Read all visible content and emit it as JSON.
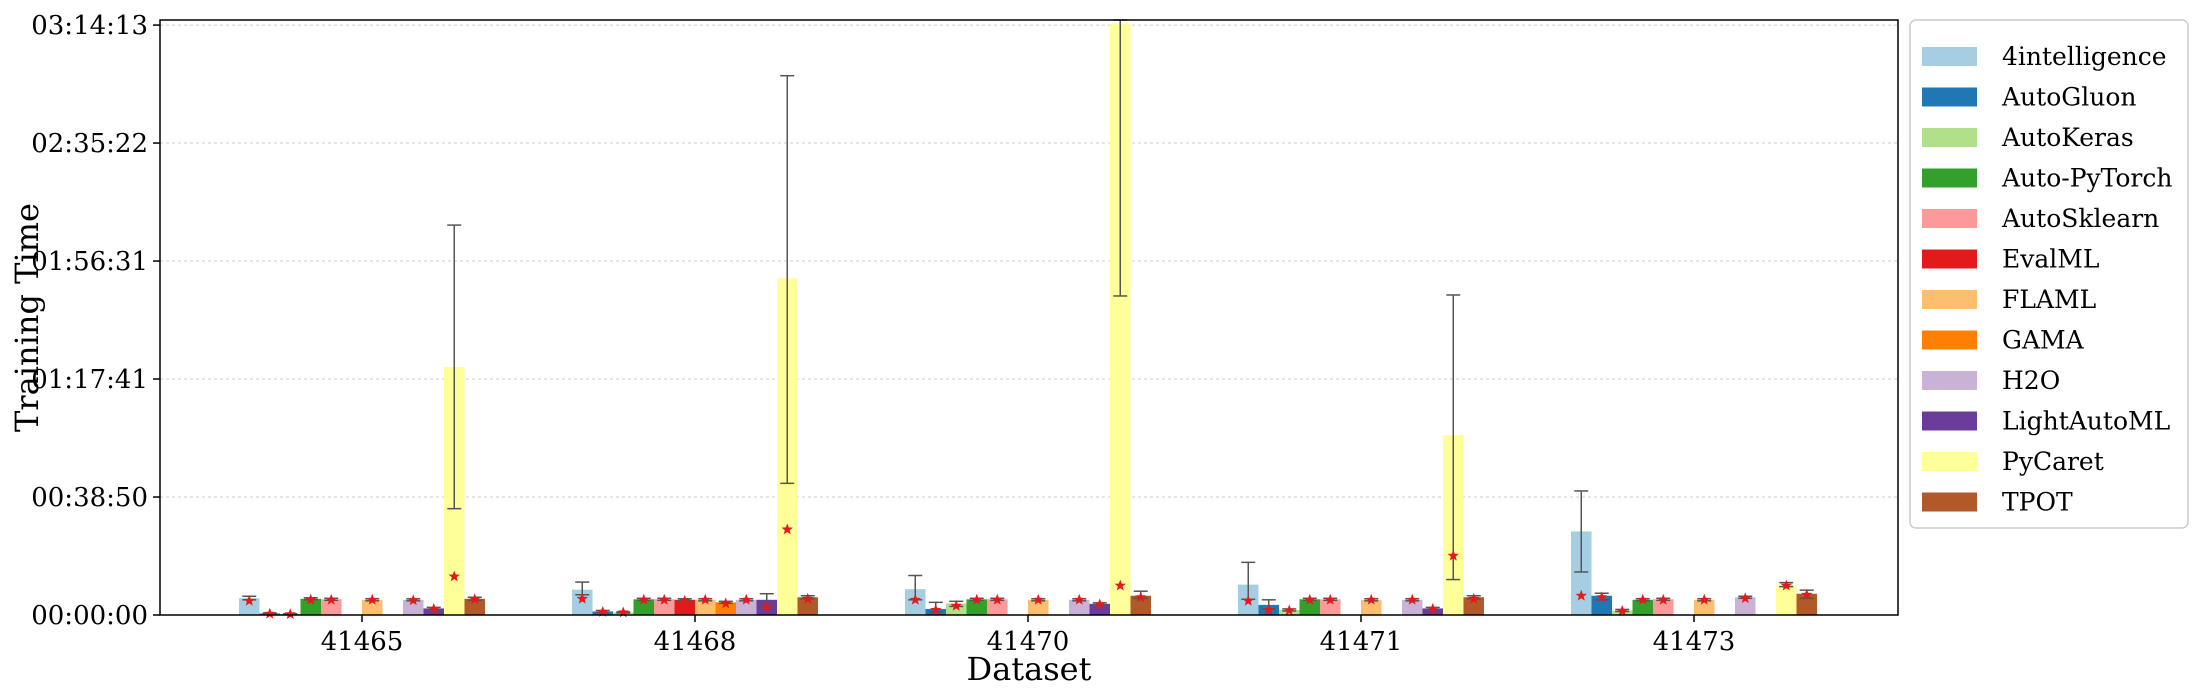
{
  "chart_data": {
    "type": "bar",
    "xlabel": "Dataset",
    "ylabel": "Training Time",
    "categories": [
      "41465",
      "41468",
      "41470",
      "41471",
      "41473"
    ],
    "y_unit": "seconds",
    "ylim": [
      0,
      11750
    ],
    "yticks": [
      0,
      2330,
      4660,
      6990,
      9320,
      11650
    ],
    "ytick_labels": [
      "00:00:00",
      "00:38:50",
      "01:17:41",
      "01:56:31",
      "02:35:22",
      "03:14:13"
    ],
    "grid": "horizontal dashed",
    "legend_position": "right",
    "mean_marker": "red star",
    "series": [
      {
        "name": "4intelligence",
        "color": "#a6cee3",
        "values": [
          330,
          500,
          510,
          600,
          1650
        ],
        "err": [
          [
            300,
            370
          ],
          [
            400,
            650
          ],
          [
            300,
            780
          ],
          [
            310,
            1040
          ],
          [
            850,
            2450
          ]
        ],
        "marker": [
          280,
          320,
          300,
          280,
          380
        ]
      },
      {
        "name": "AutoGluon",
        "color": "#1f78b4",
        "values": [
          30,
          70,
          120,
          200,
          380
        ],
        "err": [
          [
            20,
            40
          ],
          [
            50,
            90
          ],
          [
            60,
            250
          ],
          [
            120,
            300
          ],
          [
            300,
            430
          ]
        ],
        "marker": [
          25,
          60,
          100,
          100,
          350
        ]
      },
      {
        "name": "AutoKeras",
        "color": "#b2df8a",
        "values": [
          20,
          50,
          230,
          100,
          90
        ],
        "err": [
          [
            15,
            25
          ],
          [
            40,
            60
          ],
          [
            170,
            270
          ],
          [
            80,
            120
          ],
          [
            70,
            110
          ]
        ],
        "marker": [
          15,
          50,
          180,
          90,
          80
        ]
      },
      {
        "name": "Auto-PyTorch",
        "color": "#33a02c",
        "values": [
          320,
          310,
          310,
          310,
          300
        ],
        "err": [
          [
            300,
            340
          ],
          [
            290,
            330
          ],
          [
            290,
            330
          ],
          [
            290,
            330
          ],
          [
            280,
            320
          ]
        ],
        "marker": [
          300,
          300,
          300,
          300,
          300
        ]
      },
      {
        "name": "AutoSklearn",
        "color": "#fb9a99",
        "values": [
          310,
          310,
          310,
          310,
          310
        ],
        "err": [
          [
            290,
            330
          ],
          [
            290,
            330
          ],
          [
            290,
            330
          ],
          [
            290,
            330
          ],
          [
            290,
            330
          ]
        ],
        "marker": [
          300,
          300,
          300,
          300,
          300
        ]
      },
      {
        "name": "EvalML",
        "color": "#e31a1c",
        "values": [
          0,
          300,
          0,
          0,
          0
        ],
        "err": [
          null,
          [
            280,
            320
          ],
          null,
          null,
          null
        ],
        "marker": [
          null,
          280,
          null,
          null,
          null
        ]
      },
      {
        "name": "FLAML",
        "color": "#fdbf6f",
        "values": [
          300,
          300,
          300,
          300,
          300
        ],
        "err": [
          [
            280,
            320
          ],
          [
            280,
            320
          ],
          [
            280,
            320
          ],
          [
            280,
            320
          ],
          [
            280,
            320
          ]
        ],
        "marker": [
          300,
          300,
          300,
          300,
          300
        ]
      },
      {
        "name": "GAMA",
        "color": "#ff7f00",
        "values": [
          0,
          250,
          0,
          0,
          0
        ],
        "err": [
          null,
          [
            230,
            270
          ],
          null,
          null,
          null
        ],
        "marker": [
          null,
          230,
          null,
          null,
          null
        ]
      },
      {
        "name": "H2O",
        "color": "#cab2d6",
        "values": [
          300,
          300,
          300,
          300,
          350
        ],
        "err": [
          [
            280,
            320
          ],
          [
            280,
            320
          ],
          [
            280,
            320
          ],
          [
            280,
            320
          ],
          [
            330,
            370
          ]
        ],
        "marker": [
          290,
          300,
          300,
          300,
          330
        ]
      },
      {
        "name": "LightAutoML",
        "color": "#6a3d9a",
        "values": [
          130,
          300,
          220,
          130,
          0
        ],
        "err": [
          [
            110,
            150
          ],
          [
            180,
            420
          ],
          [
            200,
            240
          ],
          [
            110,
            150
          ],
          null
        ],
        "marker": [
          120,
          150,
          210,
          120,
          null
        ]
      },
      {
        "name": "PyCaret",
        "color": "#ffff99",
        "values": [
          4900,
          6650,
          11680,
          3550,
          600
        ],
        "err": [
          [
            2100,
            7700
          ],
          [
            2600,
            10650
          ],
          [
            6300,
            11750
          ],
          [
            700,
            6320
          ],
          [
            560,
            640
          ]
        ],
        "marker": [
          760,
          1690,
          580,
          1170,
          580
        ]
      },
      {
        "name": "TPOT",
        "color": "#b15928",
        "values": [
          320,
          350,
          380,
          350,
          420
        ],
        "err": [
          [
            290,
            350
          ],
          [
            320,
            380
          ],
          [
            330,
            470
          ],
          [
            320,
            380
          ],
          [
            330,
            490
          ]
        ],
        "marker": [
          310,
          320,
          350,
          320,
          400
        ]
      }
    ]
  }
}
